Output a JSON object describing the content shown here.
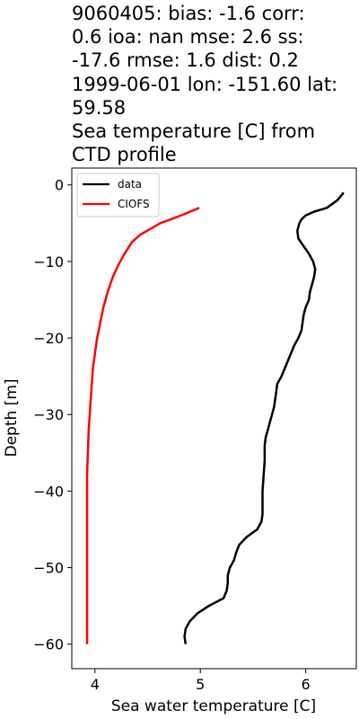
{
  "title_lines": [
    "9060405: bias: -1.6  corr:",
    "0.6  ioa: nan  mse: 2.6  ss:",
    "-17.6  rmse: 1.6  dist: 0.2",
    "1999-06-01 lon: -151.60 lat:",
    "59.58",
    "Sea temperature [C] from",
    "CTD profile"
  ],
  "chart_data": {
    "type": "line",
    "xlabel": "Sea water temperature [C]",
    "ylabel": "Depth [m]",
    "xlim": [
      3.78,
      6.48
    ],
    "ylim": [
      -63.2,
      2.2
    ],
    "xticks": [
      4,
      5,
      6
    ],
    "yticks": [
      0,
      -10,
      -20,
      -30,
      -40,
      -50,
      -60
    ],
    "xtick_labels": [
      "4",
      "5",
      "6"
    ],
    "ytick_labels": [
      "0",
      "−10",
      "−20",
      "−30",
      "−40",
      "−50",
      "−60"
    ],
    "legend": "top-left",
    "grid": false,
    "series": [
      {
        "name": "data",
        "color": "#000000",
        "points": [
          [
            6.36,
            -1
          ],
          [
            6.3,
            -2
          ],
          [
            6.2,
            -3
          ],
          [
            6.08,
            -3.5
          ],
          [
            6.0,
            -4
          ],
          [
            5.96,
            -4.5
          ],
          [
            5.94,
            -5
          ],
          [
            5.93,
            -5.5
          ],
          [
            5.92,
            -6
          ],
          [
            5.93,
            -7
          ],
          [
            5.98,
            -8
          ],
          [
            6.03,
            -9
          ],
          [
            6.07,
            -10
          ],
          [
            6.09,
            -11
          ],
          [
            6.08,
            -12
          ],
          [
            6.06,
            -13
          ],
          [
            6.04,
            -14
          ],
          [
            6.03,
            -15
          ],
          [
            6.0,
            -16
          ],
          [
            5.98,
            -17
          ],
          [
            5.97,
            -18
          ],
          [
            5.96,
            -19
          ],
          [
            5.93,
            -20
          ],
          [
            5.89,
            -21
          ],
          [
            5.86,
            -22
          ],
          [
            5.83,
            -23
          ],
          [
            5.8,
            -24
          ],
          [
            5.77,
            -25
          ],
          [
            5.73,
            -26
          ],
          [
            5.72,
            -27
          ],
          [
            5.71,
            -28
          ],
          [
            5.7,
            -29
          ],
          [
            5.68,
            -30
          ],
          [
            5.66,
            -31
          ],
          [
            5.64,
            -32
          ],
          [
            5.62,
            -33
          ],
          [
            5.61,
            -34
          ],
          [
            5.61,
            -36
          ],
          [
            5.6,
            -38
          ],
          [
            5.59,
            -40
          ],
          [
            5.59,
            -42
          ],
          [
            5.59,
            -43
          ],
          [
            5.58,
            -44
          ],
          [
            5.54,
            -45
          ],
          [
            5.44,
            -46
          ],
          [
            5.37,
            -47
          ],
          [
            5.34,
            -48
          ],
          [
            5.32,
            -49
          ],
          [
            5.28,
            -50
          ],
          [
            5.26,
            -51
          ],
          [
            5.26,
            -52
          ],
          [
            5.25,
            -53
          ],
          [
            5.22,
            -54
          ],
          [
            5.08,
            -55
          ],
          [
            4.97,
            -56
          ],
          [
            4.9,
            -57
          ],
          [
            4.86,
            -58
          ],
          [
            4.85,
            -59
          ],
          [
            4.86,
            -60
          ]
        ]
      },
      {
        "name": "CIOFS",
        "color": "#ff0000",
        "points": [
          [
            4.99,
            -3
          ],
          [
            4.85,
            -3.8
          ],
          [
            4.72,
            -4.5
          ],
          [
            4.62,
            -5
          ],
          [
            4.52,
            -5.8
          ],
          [
            4.43,
            -6.5
          ],
          [
            4.35,
            -7.5
          ],
          [
            4.28,
            -9
          ],
          [
            4.22,
            -10.5
          ],
          [
            4.17,
            -12
          ],
          [
            4.12,
            -14
          ],
          [
            4.08,
            -16
          ],
          [
            4.05,
            -18
          ],
          [
            4.02,
            -20
          ],
          [
            4.0,
            -22
          ],
          [
            3.98,
            -24
          ],
          [
            3.97,
            -26
          ],
          [
            3.96,
            -28
          ],
          [
            3.95,
            -30
          ],
          [
            3.94,
            -32
          ],
          [
            3.935,
            -34
          ],
          [
            3.93,
            -36
          ],
          [
            3.925,
            -38
          ],
          [
            3.925,
            -40
          ],
          [
            3.925,
            -45
          ],
          [
            3.925,
            -50
          ],
          [
            3.925,
            -55
          ],
          [
            3.925,
            -60
          ]
        ]
      }
    ]
  }
}
